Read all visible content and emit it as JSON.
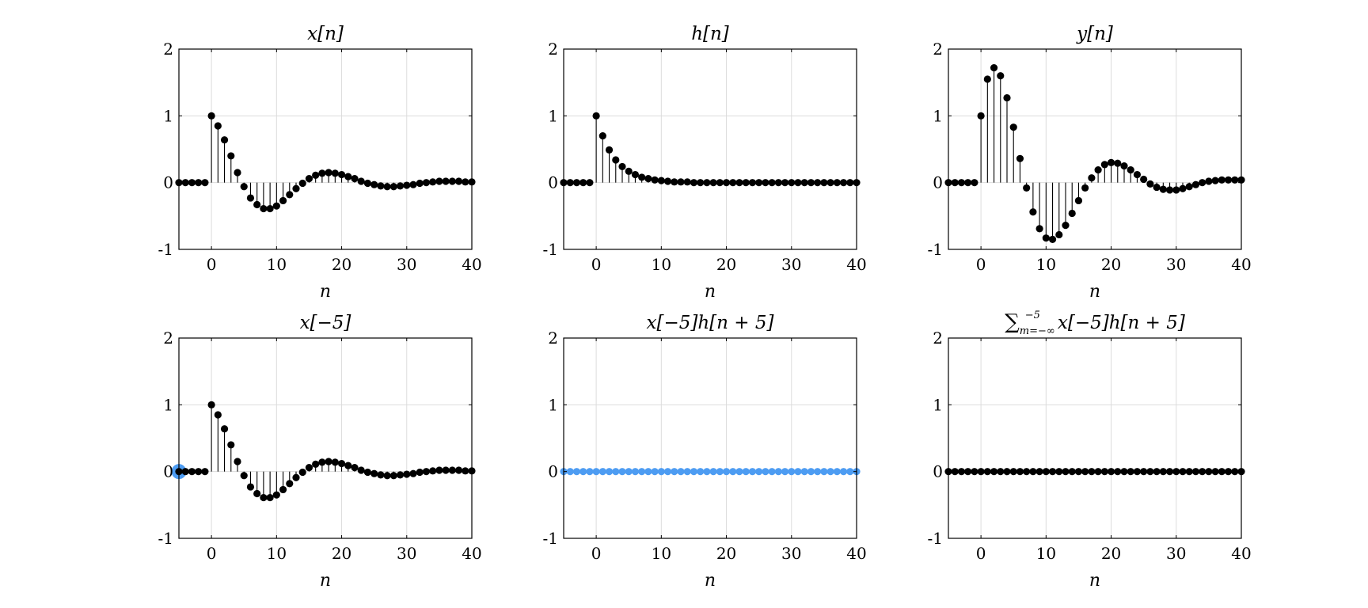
{
  "figure": {
    "background": "#ffffff"
  },
  "colors": {
    "stem": "#000000",
    "highlight": "#4d9cf2",
    "grid": "#dcdcdc",
    "axis": "#000000"
  },
  "chart_data": [
    {
      "type": "stem",
      "title": "x[n]",
      "xlabel": "n",
      "xlim": [
        -5,
        40
      ],
      "ylim": [
        -1,
        2
      ],
      "xticks": [
        0,
        10,
        20,
        30,
        40
      ],
      "yticks": [
        -1,
        0,
        1,
        2
      ],
      "grid": true,
      "color": "#000000",
      "x": [
        -5,
        -4,
        -3,
        -2,
        -1,
        0,
        1,
        2,
        3,
        4,
        5,
        6,
        7,
        8,
        9,
        10,
        11,
        12,
        13,
        14,
        15,
        16,
        17,
        18,
        19,
        20,
        21,
        22,
        23,
        24,
        25,
        26,
        27,
        28,
        29,
        30,
        31,
        32,
        33,
        34,
        35,
        36,
        37,
        38,
        39,
        40
      ],
      "y": [
        0,
        0,
        0,
        0,
        0,
        1.0,
        0.85,
        0.64,
        0.4,
        0.15,
        -0.06,
        -0.23,
        -0.33,
        -0.39,
        -0.39,
        -0.35,
        -0.27,
        -0.18,
        -0.09,
        -0.01,
        0.06,
        0.11,
        0.14,
        0.15,
        0.14,
        0.12,
        0.09,
        0.06,
        0.02,
        -0.01,
        -0.03,
        -0.05,
        -0.06,
        -0.06,
        -0.05,
        -0.04,
        -0.03,
        -0.01,
        0.0,
        0.01,
        0.02,
        0.02,
        0.02,
        0.02,
        0.01,
        0.01
      ]
    },
    {
      "type": "stem",
      "title": "h[n]",
      "xlabel": "n",
      "xlim": [
        -5,
        40
      ],
      "ylim": [
        -1,
        2
      ],
      "xticks": [
        0,
        10,
        20,
        30,
        40
      ],
      "yticks": [
        -1,
        0,
        1,
        2
      ],
      "grid": true,
      "color": "#000000",
      "x": [
        -5,
        -4,
        -3,
        -2,
        -1,
        0,
        1,
        2,
        3,
        4,
        5,
        6,
        7,
        8,
        9,
        10,
        11,
        12,
        13,
        14,
        15,
        16,
        17,
        18,
        19,
        20,
        21,
        22,
        23,
        24,
        25,
        26,
        27,
        28,
        29,
        30,
        31,
        32,
        33,
        34,
        35,
        36,
        37,
        38,
        39,
        40
      ],
      "y": [
        0,
        0,
        0,
        0,
        0,
        1.0,
        0.7,
        0.49,
        0.34,
        0.24,
        0.17,
        0.12,
        0.08,
        0.06,
        0.04,
        0.03,
        0.02,
        0.01,
        0.01,
        0.01,
        0,
        0,
        0,
        0,
        0,
        0,
        0,
        0,
        0,
        0,
        0,
        0,
        0,
        0,
        0,
        0,
        0,
        0,
        0,
        0,
        0,
        0,
        0,
        0,
        0,
        0
      ]
    },
    {
      "type": "stem",
      "title": "y[n]",
      "xlabel": "n",
      "xlim": [
        -5,
        40
      ],
      "ylim": [
        -1,
        2
      ],
      "xticks": [
        0,
        10,
        20,
        30,
        40
      ],
      "yticks": [
        -1,
        0,
        1,
        2
      ],
      "grid": true,
      "color": "#000000",
      "x": [
        -5,
        -4,
        -3,
        -2,
        -1,
        0,
        1,
        2,
        3,
        4,
        5,
        6,
        7,
        8,
        9,
        10,
        11,
        12,
        13,
        14,
        15,
        16,
        17,
        18,
        19,
        20,
        21,
        22,
        23,
        24,
        25,
        26,
        27,
        28,
        29,
        30,
        31,
        32,
        33,
        34,
        35,
        36,
        37,
        38,
        39,
        40
      ],
      "y": [
        0,
        0,
        0,
        0,
        0,
        1.0,
        1.55,
        1.72,
        1.6,
        1.27,
        0.83,
        0.36,
        -0.08,
        -0.44,
        -0.69,
        -0.83,
        -0.85,
        -0.78,
        -0.64,
        -0.46,
        -0.27,
        -0.08,
        0.07,
        0.19,
        0.27,
        0.3,
        0.29,
        0.25,
        0.19,
        0.12,
        0.05,
        -0.02,
        -0.07,
        -0.1,
        -0.11,
        -0.11,
        -0.09,
        -0.06,
        -0.03,
        0.0,
        0.02,
        0.03,
        0.04,
        0.04,
        0.04,
        0.04
      ]
    },
    {
      "type": "stem",
      "title": "x[−5]",
      "xlabel": "n",
      "xlim": [
        -5,
        40
      ],
      "ylim": [
        -1,
        2
      ],
      "xticks": [
        0,
        10,
        20,
        30,
        40
      ],
      "yticks": [
        -1,
        0,
        1,
        2
      ],
      "grid": true,
      "color": "#000000",
      "highlight_x": -5,
      "highlight_y": 0,
      "highlight_color": "#4d9cf2",
      "x": [
        -5,
        -4,
        -3,
        -2,
        -1,
        0,
        1,
        2,
        3,
        4,
        5,
        6,
        7,
        8,
        9,
        10,
        11,
        12,
        13,
        14,
        15,
        16,
        17,
        18,
        19,
        20,
        21,
        22,
        23,
        24,
        25,
        26,
        27,
        28,
        29,
        30,
        31,
        32,
        33,
        34,
        35,
        36,
        37,
        38,
        39,
        40
      ],
      "y": [
        0,
        0,
        0,
        0,
        0,
        1.0,
        0.85,
        0.64,
        0.4,
        0.15,
        -0.06,
        -0.23,
        -0.33,
        -0.39,
        -0.39,
        -0.35,
        -0.27,
        -0.18,
        -0.09,
        -0.01,
        0.06,
        0.11,
        0.14,
        0.15,
        0.14,
        0.12,
        0.09,
        0.06,
        0.02,
        -0.01,
        -0.03,
        -0.05,
        -0.06,
        -0.06,
        -0.05,
        -0.04,
        -0.03,
        -0.01,
        0.0,
        0.01,
        0.02,
        0.02,
        0.02,
        0.02,
        0.01,
        0.01
      ]
    },
    {
      "type": "stem",
      "title": "x[−5]h[n + 5]",
      "xlabel": "n",
      "xlim": [
        -5,
        40
      ],
      "ylim": [
        -1,
        2
      ],
      "xticks": [
        0,
        10,
        20,
        30,
        40
      ],
      "yticks": [
        -1,
        0,
        1,
        2
      ],
      "grid": true,
      "color": "#4d9cf2",
      "x": [
        -5,
        -4,
        -3,
        -2,
        -1,
        0,
        1,
        2,
        3,
        4,
        5,
        6,
        7,
        8,
        9,
        10,
        11,
        12,
        13,
        14,
        15,
        16,
        17,
        18,
        19,
        20,
        21,
        22,
        23,
        24,
        25,
        26,
        27,
        28,
        29,
        30,
        31,
        32,
        33,
        34,
        35,
        36,
        37,
        38,
        39,
        40
      ],
      "y": [
        0,
        0,
        0,
        0,
        0,
        0,
        0,
        0,
        0,
        0,
        0,
        0,
        0,
        0,
        0,
        0,
        0,
        0,
        0,
        0,
        0,
        0,
        0,
        0,
        0,
        0,
        0,
        0,
        0,
        0,
        0,
        0,
        0,
        0,
        0,
        0,
        0,
        0,
        0,
        0,
        0,
        0,
        0,
        0,
        0,
        0
      ]
    },
    {
      "type": "stem",
      "title": "∑ x[−5]h[n + 5]",
      "title_sup": "−5",
      "title_sub": "m=−∞",
      "xlabel": "n",
      "xlim": [
        -5,
        40
      ],
      "ylim": [
        -1,
        2
      ],
      "xticks": [
        0,
        10,
        20,
        30,
        40
      ],
      "yticks": [
        -1,
        0,
        1,
        2
      ],
      "grid": true,
      "color": "#000000",
      "x": [
        -5,
        -4,
        -3,
        -2,
        -1,
        0,
        1,
        2,
        3,
        4,
        5,
        6,
        7,
        8,
        9,
        10,
        11,
        12,
        13,
        14,
        15,
        16,
        17,
        18,
        19,
        20,
        21,
        22,
        23,
        24,
        25,
        26,
        27,
        28,
        29,
        30,
        31,
        32,
        33,
        34,
        35,
        36,
        37,
        38,
        39,
        40
      ],
      "y": [
        0,
        0,
        0,
        0,
        0,
        0,
        0,
        0,
        0,
        0,
        0,
        0,
        0,
        0,
        0,
        0,
        0,
        0,
        0,
        0,
        0,
        0,
        0,
        0,
        0,
        0,
        0,
        0,
        0,
        0,
        0,
        0,
        0,
        0,
        0,
        0,
        0,
        0,
        0,
        0,
        0,
        0,
        0,
        0,
        0,
        0
      ]
    }
  ]
}
